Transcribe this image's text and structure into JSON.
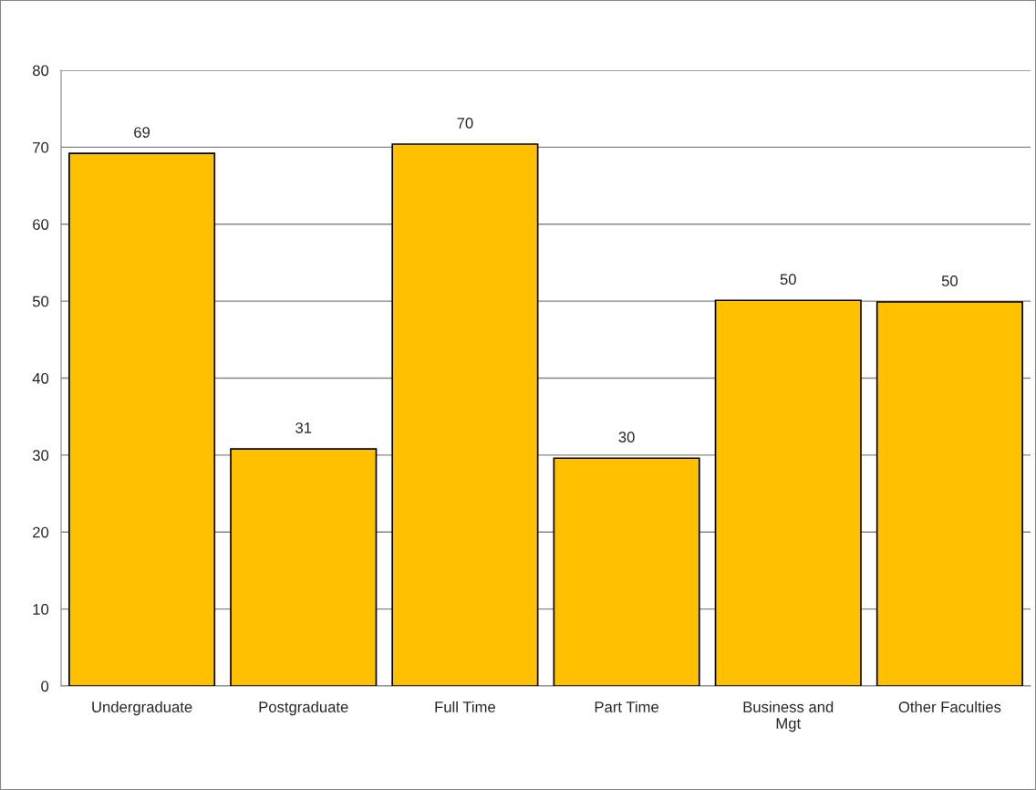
{
  "chart_data": {
    "type": "bar",
    "categories": [
      "Undergraduate",
      "Postgraduate",
      "Full Time",
      "Part Time",
      "Business and\nMgt",
      "Other Faculties"
    ],
    "values": [
      69.2,
      30.8,
      70.4,
      29.6,
      50.1,
      49.9
    ],
    "value_labels": [
      "69",
      "31",
      "70",
      "30",
      "50",
      "50"
    ],
    "color": "#ffc000",
    "ylim": [
      0,
      80
    ],
    "yticks": [
      0,
      10,
      20,
      30,
      40,
      50,
      60,
      70,
      80
    ],
    "grid": "y",
    "legend": false
  }
}
